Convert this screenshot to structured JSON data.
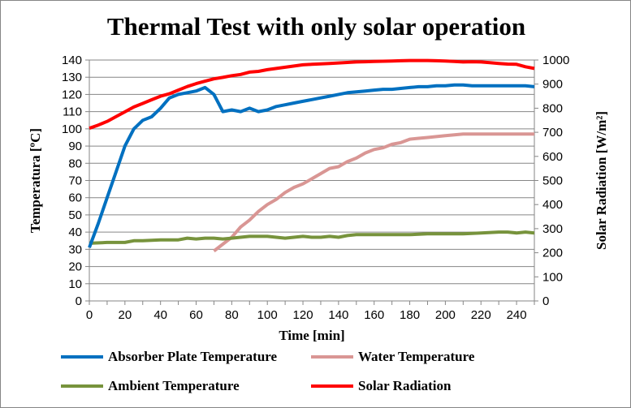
{
  "chart_data": {
    "type": "line",
    "title": "Thermal Test with only solar operation",
    "xlabel": "Time [min]",
    "ylabel": "Temperatura [ºC]",
    "y2label": "Solar Radiation [W/m²]",
    "xlim": [
      0,
      250
    ],
    "ylim": [
      0,
      140
    ],
    "y2lim": [
      0,
      1000
    ],
    "xticks": [
      0,
      20,
      40,
      60,
      80,
      100,
      120,
      140,
      160,
      180,
      200,
      220,
      240
    ],
    "yticks": [
      0,
      10,
      20,
      30,
      40,
      50,
      60,
      70,
      80,
      90,
      100,
      110,
      120,
      130,
      140
    ],
    "y2ticks": [
      0,
      100,
      200,
      300,
      400,
      500,
      600,
      700,
      800,
      900,
      1000
    ],
    "grid": true,
    "legend_position": "bottom",
    "series": [
      {
        "name": "Absorber Plate Temperature",
        "axis": "left",
        "color": "#0070C0",
        "x": [
          0,
          5,
          10,
          15,
          20,
          25,
          30,
          35,
          40,
          45,
          50,
          55,
          60,
          65,
          70,
          75,
          80,
          85,
          90,
          95,
          100,
          105,
          110,
          115,
          120,
          125,
          130,
          135,
          140,
          145,
          150,
          155,
          160,
          165,
          170,
          175,
          180,
          185,
          190,
          195,
          200,
          205,
          210,
          215,
          220,
          225,
          230,
          235,
          240,
          245,
          250
        ],
        "y": [
          31,
          45,
          60,
          75,
          90,
          100,
          105,
          107,
          112,
          118,
          120,
          121,
          122,
          124,
          120,
          110,
          111,
          110,
          112,
          110,
          111,
          113,
          114,
          115,
          116,
          117,
          118,
          119,
          120,
          121,
          121.5,
          122,
          122.5,
          123,
          123,
          123.5,
          124,
          124.5,
          124.5,
          125,
          125,
          125.5,
          125.5,
          125,
          125,
          125,
          125,
          125,
          125,
          125,
          124.5
        ]
      },
      {
        "name": "Water Temperature",
        "axis": "left",
        "color": "#D99694",
        "x": [
          70,
          75,
          80,
          85,
          90,
          95,
          100,
          105,
          110,
          115,
          120,
          125,
          130,
          135,
          140,
          145,
          150,
          155,
          160,
          165,
          170,
          175,
          180,
          185,
          190,
          195,
          200,
          205,
          210,
          215,
          220,
          225,
          230,
          235,
          240,
          245,
          250
        ],
        "y": [
          29,
          33,
          37,
          43,
          47,
          52,
          56,
          59,
          63,
          66,
          68,
          71,
          74,
          77,
          78,
          81,
          83,
          86,
          88,
          89,
          91,
          92,
          94,
          94.5,
          95,
          95.5,
          96,
          96.5,
          97,
          97,
          97,
          97,
          97,
          97,
          97,
          97,
          97
        ]
      },
      {
        "name": "Ambient Temperature",
        "axis": "left",
        "color": "#77933C",
        "x": [
          0,
          10,
          20,
          25,
          30,
          40,
          50,
          55,
          60,
          65,
          70,
          75,
          80,
          85,
          90,
          100,
          110,
          120,
          125,
          130,
          135,
          140,
          145,
          150,
          160,
          170,
          180,
          190,
          200,
          210,
          220,
          230,
          235,
          240,
          245,
          250
        ],
        "y": [
          33.5,
          34,
          34,
          35,
          35,
          35.5,
          35.5,
          36.5,
          36,
          36.5,
          36.5,
          36,
          36.5,
          37,
          37.5,
          37.5,
          36.5,
          37.5,
          37,
          37,
          37.5,
          37,
          38,
          38.5,
          38.5,
          38.5,
          38.5,
          39,
          39,
          39,
          39.5,
          40,
          40,
          39.5,
          40,
          39.5
        ]
      },
      {
        "name": "Solar Radiation",
        "axis": "right",
        "color": "#FF0000",
        "x": [
          0,
          5,
          10,
          15,
          20,
          25,
          30,
          35,
          40,
          45,
          50,
          55,
          60,
          65,
          70,
          75,
          80,
          85,
          90,
          95,
          100,
          105,
          110,
          115,
          120,
          125,
          130,
          135,
          140,
          145,
          150,
          155,
          160,
          165,
          170,
          175,
          180,
          185,
          190,
          195,
          200,
          205,
          210,
          215,
          220,
          225,
          230,
          235,
          240,
          245,
          250
        ],
        "y": [
          717,
          730,
          745,
          765,
          785,
          805,
          820,
          835,
          850,
          860,
          875,
          890,
          902,
          912,
          922,
          928,
          935,
          940,
          950,
          953,
          960,
          965,
          970,
          975,
          980,
          982,
          984,
          986,
          988,
          990,
          992,
          993,
          994,
          995,
          996,
          997,
          998,
          998,
          998,
          997,
          996,
          994,
          992,
          993,
          992,
          989,
          986,
          983,
          982,
          972,
          965
        ]
      }
    ]
  }
}
